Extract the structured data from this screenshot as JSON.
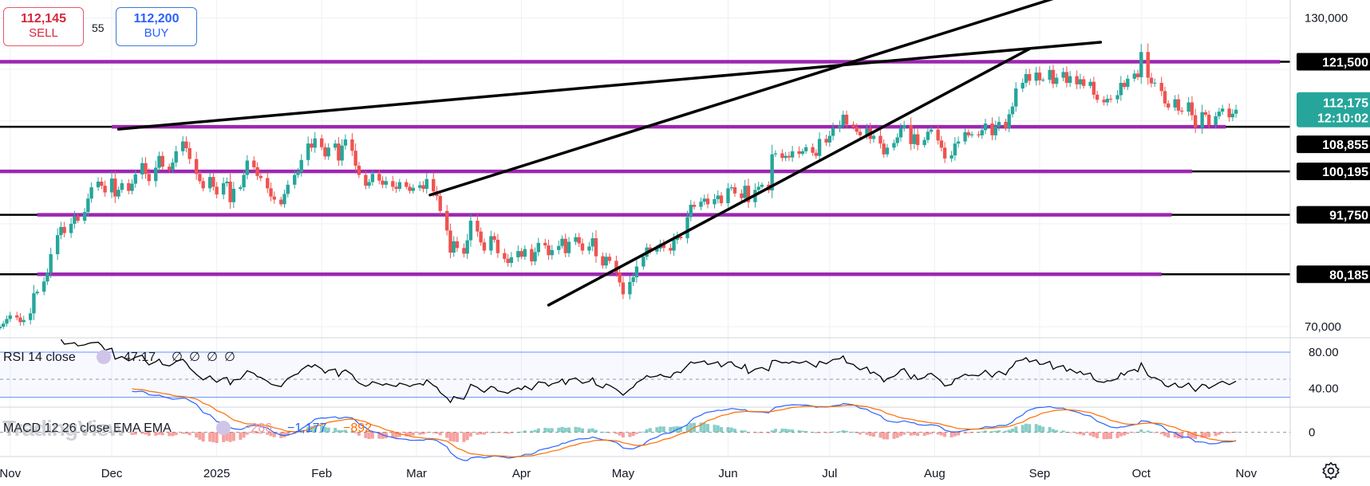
{
  "trade": {
    "sell_price": "112,145",
    "sell_label": "SELL",
    "spread": "55",
    "buy_price": "112,200",
    "buy_label": "BUY"
  },
  "watermark": "TradingView",
  "colors": {
    "up": "#26a69a",
    "down": "#ef5350",
    "horizontal_zone": "#9c27b0",
    "trendline": "#000000",
    "last_price_tag": "#26a69a",
    "rsi_line": "#000000",
    "rsi_band": "#2962ff",
    "macd_line": "#2962ff",
    "signal_line": "#ff6d00"
  },
  "chart_data": [
    {
      "type": "candlestick",
      "title": "",
      "x_tick_labels": [
        "Nov",
        "Dec",
        "2025",
        "Feb",
        "Mar",
        "Apr",
        "May",
        "Jun",
        "Jul",
        "Aug",
        "Sep",
        "Oct",
        "Nov"
      ],
      "x_range": [
        "2024-10-29",
        "2025-11-14"
      ],
      "y_axis_tick_labels": [
        "130,000",
        "70,000"
      ],
      "ylim": [
        68000,
        133500
      ],
      "last_price": "112,175",
      "countdown": "12:10:02",
      "level_labels": [
        "121,500",
        "108,855",
        "100,195",
        "91,750",
        "80,185"
      ],
      "horizontal_levels": [
        {
          "value": 121500,
          "from": "2024-10-29",
          "to": "2025-11-11",
          "color": "#9c27b0"
        },
        {
          "value": 108855,
          "from": "2024-12-01",
          "to": "2025-10-26",
          "color": "#9c27b0"
        },
        {
          "value": 100195,
          "from": "2024-10-29",
          "to": "2025-10-16",
          "color": "#9c27b0"
        },
        {
          "value": 91750,
          "from": "2024-11-09",
          "to": "2025-10-10",
          "color": "#9c27b0"
        },
        {
          "value": 80185,
          "from": "2024-11-09",
          "to": "2025-10-07",
          "color": "#9c27b0"
        }
      ],
      "trendlines": [
        {
          "from": [
            "2024-12-03",
            108400
          ],
          "to": [
            "2025-09-19",
            125300
          ]
        },
        {
          "from": [
            "2025-03-05",
            95600
          ],
          "to": [
            "2025-09-11",
            135000
          ]
        },
        {
          "from": [
            "2025-04-09",
            74200
          ],
          "to": [
            "2025-08-29",
            124000
          ]
        }
      ],
      "closes": [
        70000,
        70600,
        71500,
        72200,
        71800,
        70900,
        71300,
        72600,
        76500,
        76800,
        78800,
        80500,
        84100,
        87800,
        89400,
        88200,
        90000,
        91400,
        90600,
        92300,
        94900,
        97100,
        98200,
        97400,
        96100,
        98800,
        95300,
        96600,
        97900,
        96400,
        97800,
        99600,
        101800,
        99700,
        98300,
        100900,
        103200,
        101100,
        100500,
        101900,
        104100,
        106000,
        104700,
        102600,
        99700,
        98300,
        96900,
        99100,
        97200,
        95700,
        97900,
        98200,
        94200,
        96800,
        97100,
        99500,
        102300,
        101000,
        99300,
        98900,
        96900,
        95300,
        94700,
        93800,
        95800,
        97600,
        99500,
        100100,
        102400,
        105600,
        104800,
        106600,
        104900,
        103100,
        104800,
        105600,
        102300,
        105200,
        106400,
        104200,
        101300,
        99500,
        97400,
        98100,
        99700,
        98400,
        97600,
        98300,
        97200,
        96800,
        98100,
        97200,
        96400,
        97000,
        97500,
        96800,
        98700,
        96300,
        95400,
        92500,
        88700,
        84400,
        86600,
        85300,
        84200,
        86800,
        90600,
        88500,
        86400,
        84800,
        87600,
        86900,
        84300,
        83200,
        82400,
        83500,
        84700,
        83600,
        85100,
        82700,
        84500,
        86300,
        85800,
        83900,
        84900,
        85700,
        87100,
        84300,
        86500,
        87400,
        86200,
        84800,
        85600,
        87200,
        83700,
        81900,
        83600,
        82800,
        80500,
        78600,
        76300,
        78700,
        79600,
        81700,
        83600,
        85400,
        84600,
        85200,
        86100,
        85300,
        84800,
        86900,
        87500,
        87200,
        91300,
        93700,
        93300,
        94300,
        94900,
        93800,
        94800,
        95500,
        94000,
        96900,
        97100,
        95900,
        95000,
        97400,
        94200,
        96600,
        97200,
        97600,
        96500,
        103500,
        103700,
        102800,
        103200,
        102900,
        104100,
        103600,
        104100,
        104900,
        103800,
        103200,
        106500,
        105800,
        107100,
        108600,
        109100,
        111200,
        109300,
        108800,
        107900,
        107200,
        108500,
        106500,
        107100,
        105600,
        103500,
        104800,
        105700,
        106800,
        108600,
        109200,
        105500,
        107400,
        105300,
        106300,
        107900,
        108300,
        106200,
        104800,
        102700,
        103300,
        105600,
        106000,
        107800,
        107200,
        107400,
        107200,
        108200,
        109500,
        107200,
        108900,
        109800,
        108600,
        111300,
        112800,
        116300,
        117400,
        119100,
        117800,
        119400,
        117900,
        118000,
        119900,
        117200,
        118400,
        119500,
        117400,
        118700,
        117100,
        118100,
        116800,
        117600,
        115100,
        114100,
        113600,
        114300,
        114200,
        115000,
        117400,
        116600,
        118200,
        119200,
        118500,
        123400,
        118400,
        117300,
        117400,
        115800,
        113400,
        112600,
        114200,
        112000,
        111800,
        113600,
        111100,
        108700,
        111700,
        111200,
        109200,
        110900,
        111800,
        112400,
        110700,
        111400,
        112175
      ],
      "series": [
        {
          "name": "RSI 14 close",
          "value_label": "47.17",
          "extra_labels": [
            "∅",
            "∅",
            "∅",
            "∅"
          ],
          "ylim": [
            20,
            95
          ],
          "guides": [
            80,
            40
          ],
          "midline": 50
        },
        {
          "name": "MACD 12 26 close EMA EMA",
          "values_label": [
            "−286",
            "−1,177",
            "−892"
          ],
          "ylim": [
            -3200,
            3200
          ],
          "zero": 0
        }
      ],
      "rsi_axis_labels": [
        "80.00",
        "40.00"
      ],
      "macd_axis_labels": [
        "0"
      ]
    }
  ]
}
